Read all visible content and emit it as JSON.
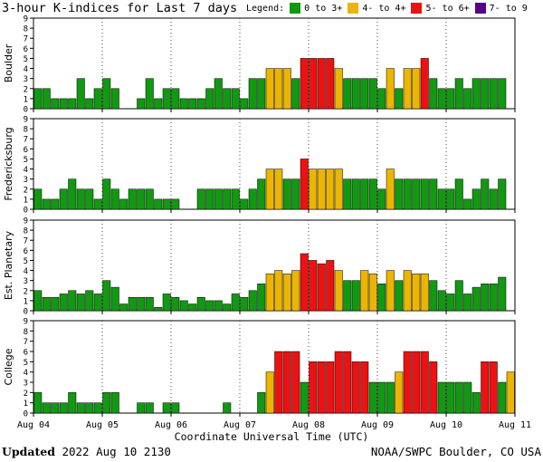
{
  "title": "3-hour K-indices for Last 7 days",
  "legend": {
    "label": "Legend:",
    "items": [
      {
        "label": "0 to 3+",
        "color": "#119911"
      },
      {
        "label": "4- to 4+",
        "color": "#ebb500"
      },
      {
        "label": "5- to 6+",
        "color": "#ee1111"
      },
      {
        "label": "7- to 9",
        "color": "#550088"
      }
    ]
  },
  "footer": {
    "updated_label": "Updated",
    "updated_value": "2022 Aug 10 2130",
    "credit": "NOAA/SWPC Boulder, CO USA"
  },
  "chart_data": [
    {
      "type": "bar",
      "ylabel": "Boulder",
      "ylim": [
        0,
        9
      ],
      "yticks": [
        "0",
        "1",
        "2",
        "3",
        "4",
        "5",
        "6",
        "7",
        "8",
        "9"
      ],
      "xticks": [
        "Aug 04",
        "Aug 05",
        "Aug 06",
        "Aug 07",
        "Aug 08",
        "Aug 09",
        "Aug 10",
        "Aug 11"
      ],
      "xlabel": "",
      "values": [
        2,
        2,
        1,
        1,
        1,
        3,
        1,
        2,
        3,
        2,
        0,
        0,
        1,
        3,
        1,
        2,
        2,
        1,
        1,
        1,
        2,
        3,
        2,
        2,
        1,
        3,
        3,
        4,
        4,
        4,
        3,
        5,
        5,
        5,
        5,
        4,
        3,
        3,
        3,
        3,
        2,
        4,
        2,
        4,
        4,
        5,
        3,
        2,
        2,
        3,
        2,
        3,
        3,
        3,
        3,
        0
      ]
    },
    {
      "type": "bar",
      "ylabel": "Fredericksburg",
      "ylim": [
        0,
        9
      ],
      "yticks": [
        "0",
        "1",
        "2",
        "3",
        "4",
        "5",
        "6",
        "7",
        "8",
        "9"
      ],
      "xticks": [
        "Aug 04",
        "Aug 05",
        "Aug 06",
        "Aug 07",
        "Aug 08",
        "Aug 09",
        "Aug 10",
        "Aug 11"
      ],
      "xlabel": "",
      "values": [
        2,
        1,
        1,
        2,
        3,
        2,
        2,
        1,
        3,
        2,
        1,
        2,
        2,
        2,
        1,
        1,
        1,
        0,
        0,
        2,
        2,
        2,
        2,
        2,
        1,
        2,
        3,
        4,
        4,
        3,
        3,
        5,
        4,
        4,
        4,
        4,
        3,
        3,
        3,
        3,
        2,
        4,
        3,
        3,
        3,
        3,
        3,
        2,
        2,
        3,
        1,
        2,
        3,
        2,
        3,
        0
      ]
    },
    {
      "type": "bar",
      "ylabel": "Est. Planetary",
      "ylim": [
        0,
        9
      ],
      "yticks": [
        "0",
        "1",
        "2",
        "3",
        "4",
        "5",
        "6",
        "7",
        "8",
        "9"
      ],
      "xticks": [
        "Aug 04",
        "Aug 05",
        "Aug 06",
        "Aug 07",
        "Aug 08",
        "Aug 09",
        "Aug 10",
        "Aug 11"
      ],
      "xlabel": "",
      "values": [
        2,
        1.33,
        1.33,
        1.67,
        2,
        1.67,
        2,
        1.67,
        3,
        2.33,
        0.67,
        1.33,
        1.33,
        1.33,
        0.33,
        1.67,
        1.33,
        1,
        0.67,
        1.33,
        1,
        1,
        0.67,
        1.67,
        1.33,
        2,
        2.67,
        3.67,
        4,
        3.67,
        4,
        5.67,
        5,
        4.67,
        5,
        4,
        3,
        3,
        4,
        3.67,
        2.67,
        4,
        3,
        4,
        3.67,
        3.67,
        3,
        2,
        1.67,
        3,
        1.67,
        2.33,
        2.67,
        2.67,
        3.33,
        0
      ]
    },
    {
      "type": "bar",
      "ylabel": "College",
      "ylim": [
        0,
        9
      ],
      "yticks": [
        "0",
        "1",
        "2",
        "3",
        "4",
        "5",
        "6",
        "7",
        "8",
        "9"
      ],
      "xticks": [
        "Aug 04",
        "Aug 05",
        "Aug 06",
        "Aug 07",
        "Aug 08",
        "Aug 09",
        "Aug 10",
        "Aug 11"
      ],
      "xlabel": "Coordinate Universal Time (UTC)",
      "values": [
        2,
        1,
        1,
        1,
        2,
        1,
        1,
        1,
        2,
        2,
        0,
        0,
        1,
        1,
        0,
        1,
        1,
        0,
        0,
        0,
        0,
        0,
        1,
        0,
        0,
        0,
        2,
        4,
        6,
        6,
        6,
        3,
        5,
        5,
        5,
        6,
        6,
        5,
        5,
        3,
        3,
        3,
        4,
        6,
        6,
        6,
        5,
        3,
        3,
        3,
        3,
        2,
        5,
        5,
        3,
        4
      ]
    }
  ]
}
